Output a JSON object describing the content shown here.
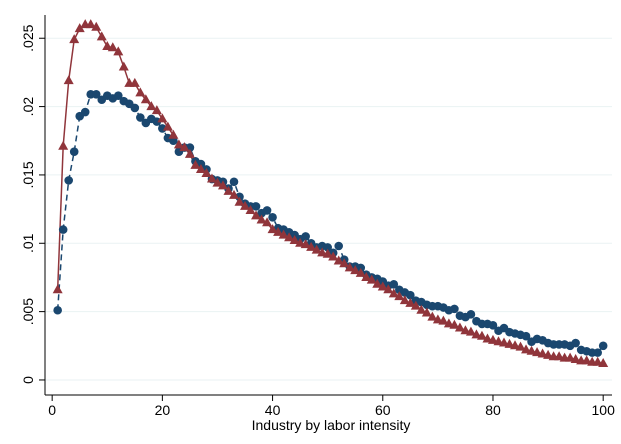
{
  "chart_data": {
    "type": "line",
    "xlabel": "Industry by labor intensity",
    "x": [
      1,
      2,
      3,
      4,
      5,
      6,
      7,
      8,
      9,
      10,
      11,
      12,
      13,
      14,
      15,
      16,
      17,
      18,
      19,
      20,
      21,
      22,
      23,
      24,
      25,
      26,
      27,
      28,
      29,
      30,
      31,
      32,
      33,
      34,
      35,
      36,
      37,
      38,
      39,
      40,
      41,
      42,
      43,
      44,
      45,
      46,
      47,
      48,
      49,
      50,
      51,
      52,
      53,
      54,
      55,
      56,
      57,
      58,
      59,
      60,
      61,
      62,
      63,
      64,
      65,
      66,
      67,
      68,
      69,
      70,
      71,
      72,
      73,
      74,
      75,
      76,
      77,
      78,
      79,
      80,
      81,
      82,
      83,
      84,
      85,
      86,
      87,
      88,
      89,
      90,
      91,
      92,
      93,
      94,
      95,
      96,
      97,
      98,
      99,
      100
    ],
    "series": [
      {
        "color": "#1a476f",
        "marker": "circle",
        "dashed": true,
        "values": [
          0.0051,
          0.011,
          0.0146,
          0.0167,
          0.0193,
          0.0196,
          0.0209,
          0.0209,
          0.0205,
          0.0208,
          0.0206,
          0.0208,
          0.0204,
          0.0202,
          0.0199,
          0.0192,
          0.0188,
          0.0191,
          0.0189,
          0.0184,
          0.0177,
          0.0175,
          0.0167,
          0.017,
          0.017,
          0.016,
          0.0158,
          0.0154,
          0.0147,
          0.0146,
          0.0145,
          0.014,
          0.0145,
          0.0134,
          0.0129,
          0.0127,
          0.0127,
          0.0122,
          0.0124,
          0.0119,
          0.0111,
          0.011,
          0.0108,
          0.0106,
          0.0103,
          0.0105,
          0.01,
          0.0097,
          0.0098,
          0.0097,
          0.0093,
          0.0098,
          0.0088,
          0.0083,
          0.0083,
          0.0082,
          0.0077,
          0.0075,
          0.0074,
          0.0072,
          0.0069,
          0.007,
          0.0066,
          0.0064,
          0.0062,
          0.0058,
          0.0057,
          0.0055,
          0.0054,
          0.0054,
          0.0053,
          0.0051,
          0.0052,
          0.0047,
          0.0046,
          0.0048,
          0.0043,
          0.0041,
          0.0041,
          0.004,
          0.0036,
          0.0038,
          0.0035,
          0.0034,
          0.0033,
          0.0032,
          0.0028,
          0.003,
          0.0029,
          0.0027,
          0.0026,
          0.0026,
          0.0026,
          0.0025,
          0.0027,
          0.0022,
          0.0021,
          0.002,
          0.002,
          0.0025
        ]
      },
      {
        "color": "#90353b",
        "marker": "triangle",
        "dashed": false,
        "values": [
          0.0066,
          0.0171,
          0.0219,
          0.0249,
          0.0257,
          0.026,
          0.026,
          0.0258,
          0.0251,
          0.0244,
          0.0243,
          0.024,
          0.0229,
          0.0217,
          0.0217,
          0.021,
          0.0205,
          0.02,
          0.0197,
          0.0191,
          0.0185,
          0.0179,
          0.0172,
          0.017,
          0.0165,
          0.0157,
          0.0154,
          0.0151,
          0.0147,
          0.0144,
          0.0142,
          0.0138,
          0.0135,
          0.013,
          0.0127,
          0.0124,
          0.012,
          0.0117,
          0.0115,
          0.011,
          0.0108,
          0.0106,
          0.0104,
          0.0102,
          0.01,
          0.0099,
          0.0097,
          0.0095,
          0.0093,
          0.0092,
          0.009,
          0.0087,
          0.0085,
          0.0082,
          0.008,
          0.0078,
          0.0075,
          0.0073,
          0.007,
          0.0068,
          0.0066,
          0.0063,
          0.0061,
          0.0058,
          0.0056,
          0.0054,
          0.0051,
          0.0049,
          0.0046,
          0.0044,
          0.0043,
          0.0041,
          0.004,
          0.0038,
          0.0036,
          0.0035,
          0.0033,
          0.0032,
          0.003,
          0.0029,
          0.0028,
          0.0027,
          0.0026,
          0.0025,
          0.0024,
          0.0022,
          0.0021,
          0.002,
          0.0019,
          0.0018,
          0.0017,
          0.0017,
          0.0016,
          0.0016,
          0.0015,
          0.0014,
          0.0014,
          0.0013,
          0.0013,
          0.0012
        ]
      }
    ],
    "xlim": [
      -1.3,
      101.6
    ],
    "ylim": [
      -0.0011,
      0.0267
    ],
    "xticks": [
      0,
      20,
      40,
      60,
      80,
      100
    ],
    "yticks": [
      0,
      {
        "value": 0.005,
        "label": ".005"
      },
      {
        "value": 0.01,
        "label": ".01"
      },
      {
        "value": 0.015,
        "label": ".015"
      },
      {
        "value": 0.02,
        "label": ".02"
      },
      {
        "value": 0.025,
        "label": ".025"
      }
    ],
    "grid": true
  }
}
